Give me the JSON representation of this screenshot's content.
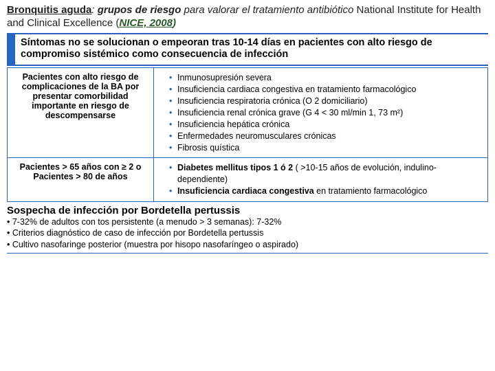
{
  "title": {
    "main": "Bronquitis aguda",
    "colon": ": ",
    "sub_bold": "grupos de riesgo",
    "sub_rest_1": " para valorar el tratamiento antibiótico ",
    "source_pre": "National Institute for Health and Clinical Excellence (",
    "source_nice": "NICE, 2008",
    "source_post": ")"
  },
  "blue_box": "Síntomas no se solucionan o empeoran tras 10-14 días  en pacientes con  alto riesgo de compromiso sistémico como consecuencia de infección",
  "row1": {
    "left": "Pacientes con alto riesgo de complicaciones de la BA por presentar comorbilidad importante en riesgo de descompensarse",
    "items": [
      "Inmunosupresión severa",
      "Insuficiencia cardiaca congestiva en tratamiento farmacológico",
      "Insuficiencia respiratoria crónica (O 2 domiciliario)",
      "Insuficiencia renal crónica grave (G 4 < 30 ml/min 1, 73 m²)",
      "Insuficiencia hepática  crónica",
      "Enfermedades neuromusculares crónicas",
      "Fibrosis quística"
    ]
  },
  "row2": {
    "left_line1": "Pacientes > 65 años con ≥ 2    o",
    "left_line2": "Pacientes > 80 de años",
    "items": [
      "Diabetes mellitus tipos 1 ó 2 ( >10-15 años de evolución, indulino-dependiente)",
      "Insuficiencia cardiaca congestiva en tratamiento farmacológico"
    ]
  },
  "footer": {
    "title": "Sospecha de infección por Bordetella pertussis",
    "lines": [
      "• 7-32% de  adultos  con tos persistente  (a menudo > 3 semanas):  7-32%",
      "• Criterios diagnóstico de caso de infección por Bordetella pertussis",
      "• Cultivo nasofaringe posterior (muestra por hisopo nasofaríngeo o aspirado)"
    ]
  },
  "colors": {
    "accent": "#2a64c2"
  }
}
